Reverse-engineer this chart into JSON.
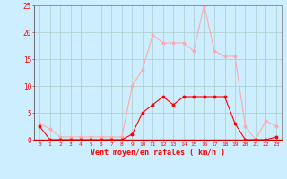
{
  "hours": [
    0,
    1,
    2,
    3,
    4,
    5,
    6,
    7,
    8,
    9,
    10,
    11,
    12,
    13,
    14,
    15,
    16,
    17,
    18,
    19,
    20,
    21,
    22,
    23
  ],
  "wind_avg": [
    2.5,
    0,
    0,
    0,
    0,
    0,
    0,
    0,
    0,
    1,
    5,
    6.5,
    8,
    6.5,
    8,
    8,
    8,
    8,
    8,
    3,
    0,
    0,
    0,
    0.5
  ],
  "wind_gust": [
    3,
    2,
    0.5,
    0.5,
    0.5,
    0.5,
    0.5,
    0.5,
    0.5,
    10,
    13,
    19.5,
    18,
    18,
    18,
    16.5,
    25,
    16.5,
    15.5,
    15.5,
    2.5,
    0,
    3.5,
    2.5
  ],
  "color_avg": "#ff0000",
  "color_gust": "#ffaaaa",
  "background_color": "#cceeff",
  "grid_color": "#aacccc",
  "xlabel": "Vent moyen/en rafales ( km/h )",
  "tick_color": "#ff0000",
  "ylim": [
    0,
    25
  ],
  "yticks": [
    0,
    5,
    10,
    15,
    20,
    25
  ],
  "xlim": [
    -0.5,
    23.5
  ]
}
